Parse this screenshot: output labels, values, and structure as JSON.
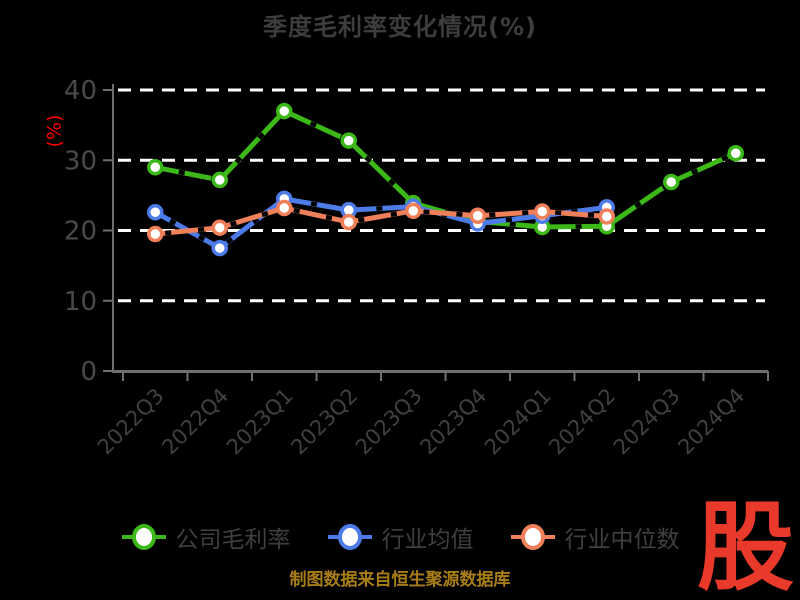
{
  "title": "季度毛利率变化情况(%)",
  "chart_data": {
    "type": "line",
    "title": "季度毛利率变化情况(%)",
    "xlabel": "",
    "ylabel": "(%)",
    "ylabel_color": "#ff0000",
    "categories": [
      "2022Q3",
      "2022Q4",
      "2023Q1",
      "2023Q2",
      "2023Q3",
      "2023Q4",
      "2024Q1",
      "2024Q2",
      "2024Q3",
      "2024Q4"
    ],
    "yticks": [
      0,
      10,
      20,
      30,
      40
    ],
    "ylim": [
      0,
      40
    ],
    "grid": "horizontal-dashed-white",
    "legend_position": "bottom",
    "background": "#000000",
    "series": [
      {
        "name": "公司毛利率",
        "color": "#3cb818",
        "values": [
          29.0,
          27.2,
          37.0,
          32.8,
          23.9,
          21.3,
          20.5,
          20.6,
          26.9,
          31.0
        ]
      },
      {
        "name": "行业均值",
        "color": "#4d7ce8",
        "values": [
          22.6,
          17.5,
          24.5,
          22.9,
          23.4,
          21.0,
          22.1,
          23.3,
          null,
          null
        ]
      },
      {
        "name": "行业中位数",
        "color": "#f0805a",
        "values": [
          19.5,
          20.4,
          23.2,
          21.2,
          22.8,
          22.1,
          22.7,
          22.0,
          null,
          null
        ]
      }
    ]
  },
  "footer": {
    "source_note": "制图数据来自恒生聚源数据库"
  },
  "logo": {
    "text": "股",
    "color": "#e8392a"
  }
}
